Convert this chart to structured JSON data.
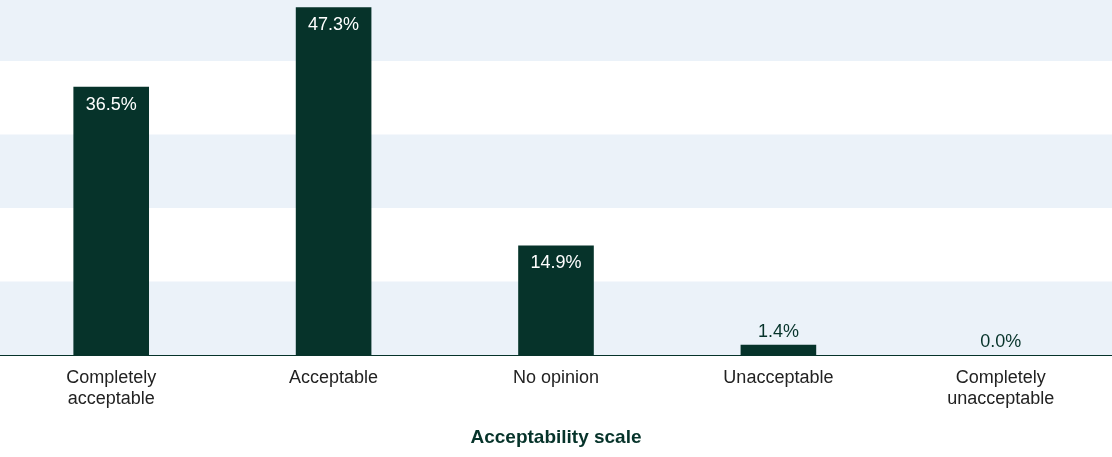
{
  "chart_data": {
    "type": "bar",
    "xlabel": "Acceptability scale",
    "categories": [
      "Completely acceptable",
      "Acceptable",
      "No opinion",
      "Unacceptable",
      "Completely unacceptable"
    ],
    "values": [
      36.5,
      47.3,
      14.9,
      1.4,
      0.0
    ],
    "value_labels": [
      "36.5%",
      "47.3%",
      "14.9%",
      "1.4%",
      "0.0%"
    ],
    "color": "#06332a",
    "ylim": [
      0,
      48.3
    ],
    "bands": [
      {
        "axis": "y",
        "from": 0,
        "to": 10,
        "color": "#ebf2f9"
      },
      {
        "axis": "y",
        "from": 20,
        "to": 30,
        "color": "#ebf2f9"
      },
      {
        "axis": "y",
        "from": 40,
        "to": 48.3,
        "color": "#ebf2f9"
      }
    ],
    "tick_labels": "x",
    "grid": false,
    "legend": false
  }
}
